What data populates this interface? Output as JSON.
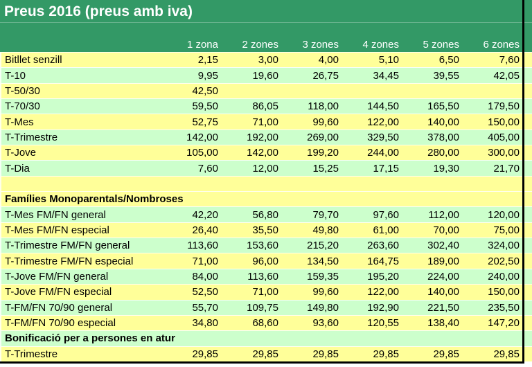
{
  "title": "Preus 2016 (preus amb iva)",
  "columns": [
    "1 zona",
    "2 zones",
    "3 zones",
    "4 zones",
    "5 zones",
    "6 zones"
  ],
  "rows": [
    {
      "label": "Bitllet senzill",
      "type": "data",
      "bg": "yellow",
      "values": [
        "2,15",
        "3,00",
        "4,00",
        "5,10",
        "6,50",
        "7,60"
      ]
    },
    {
      "label": "T-10",
      "type": "data",
      "bg": "green",
      "values": [
        "9,95",
        "19,60",
        "26,75",
        "34,45",
        "39,55",
        "42,05"
      ]
    },
    {
      "label": "T-50/30",
      "type": "data",
      "bg": "yellow",
      "values": [
        "42,50",
        "",
        "",
        "",
        "",
        ""
      ]
    },
    {
      "label": "T-70/30",
      "type": "data",
      "bg": "green",
      "values": [
        "59,50",
        "86,05",
        "118,00",
        "144,50",
        "165,50",
        "179,50"
      ]
    },
    {
      "label": "T-Mes",
      "type": "data",
      "bg": "yellow",
      "values": [
        "52,75",
        "71,00",
        "99,60",
        "122,00",
        "140,00",
        "150,00"
      ]
    },
    {
      "label": "T-Trimestre",
      "type": "data",
      "bg": "green",
      "values": [
        "142,00",
        "192,00",
        "269,00",
        "329,50",
        "378,00",
        "405,00"
      ]
    },
    {
      "label": "T-Jove",
      "type": "data",
      "bg": "yellow",
      "values": [
        "105,00",
        "142,00",
        "199,20",
        "244,00",
        "280,00",
        "300,00"
      ]
    },
    {
      "label": "T-Dia",
      "type": "data",
      "bg": "green",
      "values": [
        "7,60",
        "12,00",
        "15,25",
        "17,15",
        "19,30",
        "21,70"
      ]
    },
    {
      "label": "",
      "type": "spacer",
      "bg": "yellow",
      "values": [
        "",
        "",
        "",
        "",
        "",
        ""
      ]
    },
    {
      "label": "Famílies Monoparentals/Nombroses",
      "type": "section",
      "bg": "yellow",
      "values": []
    },
    {
      "label": "T-Mes FM/FN general",
      "type": "data",
      "bg": "green",
      "values": [
        "42,20",
        "56,80",
        "79,70",
        "97,60",
        "112,00",
        "120,00"
      ]
    },
    {
      "label": "T-Mes FM/FN especial",
      "type": "data",
      "bg": "yellow",
      "values": [
        "26,40",
        "35,50",
        "49,80",
        "61,00",
        "70,00",
        "75,00"
      ]
    },
    {
      "label": "T-Trimestre FM/FN general",
      "type": "data",
      "bg": "green",
      "values": [
        "113,60",
        "153,60",
        "215,20",
        "263,60",
        "302,40",
        "324,00"
      ]
    },
    {
      "label": "T-Trimestre FM/FN especial",
      "type": "data",
      "bg": "yellow",
      "values": [
        "71,00",
        "96,00",
        "134,50",
        "164,75",
        "189,00",
        "202,50"
      ]
    },
    {
      "label": "T-Jove FM/FN general",
      "type": "data",
      "bg": "green",
      "values": [
        "84,00",
        "113,60",
        "159,35",
        "195,20",
        "224,00",
        "240,00"
      ]
    },
    {
      "label": "T-Jove FM/FN especial",
      "type": "data",
      "bg": "yellow",
      "values": [
        "52,50",
        "71,00",
        "99,60",
        "122,00",
        "140,00",
        "150,00"
      ]
    },
    {
      "label": "T-FM/FN 70/90 general",
      "type": "data",
      "bg": "green",
      "values": [
        "55,70",
        "109,75",
        "149,80",
        "192,90",
        "221,50",
        "235,50"
      ]
    },
    {
      "label": "T-FM/FN 70/90 especial",
      "type": "data",
      "bg": "yellow",
      "values": [
        "34,80",
        "68,60",
        "93,60",
        "120,55",
        "138,40",
        "147,20"
      ]
    },
    {
      "label": "Bonificació per a persones en atur",
      "type": "section",
      "bg": "green",
      "values": []
    },
    {
      "label": "T-Trimestre",
      "type": "data",
      "bg": "yellow",
      "values": [
        "29,85",
        "29,85",
        "29,85",
        "29,85",
        "29,85",
        "29,85"
      ]
    }
  ],
  "colors": {
    "header_green": "#339966",
    "row_yellow": "#FFFF99",
    "row_green": "#CCFFCC",
    "border": "#000000",
    "header_text": "#FFFFFF",
    "cell_text": "#000000"
  }
}
